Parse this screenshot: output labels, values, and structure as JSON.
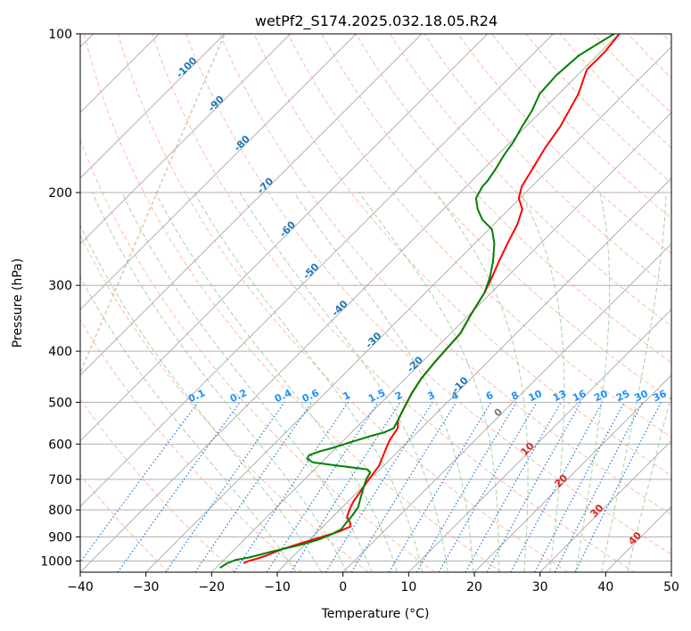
{
  "chart_data": {
    "type": "line",
    "chart_kind": "skew-T log-p thermodynamic diagram",
    "title": "wetPf2_S174.2025.032.18.05.R24",
    "xlabel": "Temperature (°C)",
    "ylabel": "Pressure (hPa)",
    "xlim": [
      -40,
      50
    ],
    "ylim": [
      1050,
      100
    ],
    "y_scale": "log",
    "x_ticks": [
      -40,
      -30,
      -20,
      -10,
      0,
      10,
      20,
      30,
      40,
      50
    ],
    "y_ticks": [
      100,
      200,
      300,
      400,
      500,
      600,
      700,
      800,
      900,
      1000
    ],
    "grid": true,
    "series": [
      {
        "name": "",
        "role": "temperature",
        "color": "#ff0000",
        "points": [
          [
            1010,
            -16.5
          ],
          [
            1000,
            -16.1
          ],
          [
            990,
            -15.2
          ],
          [
            975,
            -14.1
          ],
          [
            950,
            -12.8
          ],
          [
            925,
            -10.8
          ],
          [
            900,
            -8.6
          ],
          [
            880,
            -6.8
          ],
          [
            860,
            -5.8
          ],
          [
            845,
            -6.5
          ],
          [
            825,
            -7.8
          ],
          [
            800,
            -8.5
          ],
          [
            770,
            -9.2
          ],
          [
            740,
            -9.6
          ],
          [
            700,
            -10.2
          ],
          [
            660,
            -10.7
          ],
          [
            620,
            -12.0
          ],
          [
            590,
            -13.0
          ],
          [
            560,
            -13.6
          ],
          [
            540,
            -14.8
          ],
          [
            510,
            -15.8
          ],
          [
            480,
            -16.8
          ],
          [
            450,
            -17.6
          ],
          [
            420,
            -18.0
          ],
          [
            400,
            -18.2
          ],
          [
            370,
            -18.5
          ],
          [
            340,
            -19.8
          ],
          [
            310,
            -21.0
          ],
          [
            290,
            -22.2
          ],
          [
            270,
            -23.6
          ],
          [
            250,
            -25.0
          ],
          [
            230,
            -26.4
          ],
          [
            215,
            -28.0
          ],
          [
            205,
            -30.2
          ],
          [
            195,
            -31.5
          ],
          [
            180,
            -32.6
          ],
          [
            165,
            -33.8
          ],
          [
            150,
            -34.8
          ],
          [
            130,
            -37.0
          ],
          [
            117,
            -39.4
          ],
          [
            108,
            -39.4
          ],
          [
            100,
            -39.9
          ]
        ]
      },
      {
        "name": "",
        "role": "dewpoint",
        "color": "#008000",
        "points": [
          [
            1030,
            -19.4
          ],
          [
            1010,
            -19.0
          ],
          [
            995,
            -18.2
          ],
          [
            985,
            -16.6
          ],
          [
            960,
            -14.0
          ],
          [
            930,
            -10.4
          ],
          [
            910,
            -8.6
          ],
          [
            890,
            -7.5
          ],
          [
            870,
            -6.8
          ],
          [
            850,
            -7.0
          ],
          [
            820,
            -7.2
          ],
          [
            790,
            -7.6
          ],
          [
            760,
            -8.6
          ],
          [
            730,
            -9.6
          ],
          [
            700,
            -10.6
          ],
          [
            680,
            -11.0
          ],
          [
            670,
            -12.0
          ],
          [
            660,
            -16.8
          ],
          [
            650,
            -21.3
          ],
          [
            640,
            -22.7
          ],
          [
            630,
            -23.0
          ],
          [
            620,
            -22.0
          ],
          [
            610,
            -20.5
          ],
          [
            595,
            -18.6
          ],
          [
            580,
            -16.6
          ],
          [
            570,
            -15.0
          ],
          [
            560,
            -14.2
          ],
          [
            540,
            -14.8
          ],
          [
            510,
            -15.8
          ],
          [
            480,
            -16.8
          ],
          [
            450,
            -17.6
          ],
          [
            420,
            -18.0
          ],
          [
            400,
            -18.2
          ],
          [
            370,
            -18.5
          ],
          [
            340,
            -19.8
          ],
          [
            310,
            -21.0
          ],
          [
            290,
            -22.5
          ],
          [
            270,
            -24.5
          ],
          [
            250,
            -27.0
          ],
          [
            235,
            -29.5
          ],
          [
            225,
            -32.5
          ],
          [
            215,
            -34.8
          ],
          [
            205,
            -36.7
          ],
          [
            195,
            -37.5
          ],
          [
            190,
            -37.6
          ],
          [
            180,
            -38.2
          ],
          [
            170,
            -39.0
          ],
          [
            160,
            -39.6
          ],
          [
            150,
            -40.6
          ],
          [
            140,
            -41.5
          ],
          [
            130,
            -42.9
          ],
          [
            120,
            -43.2
          ],
          [
            110,
            -42.8
          ],
          [
            104,
            -41.6
          ],
          [
            100,
            -40.7
          ]
        ]
      }
    ],
    "background_lines": {
      "isotherms_every_c": 10,
      "dry_adiabats_color": "#ff9f80",
      "moist_adiabats_color": "#80c080",
      "mixing_ratio_color": "#1f77d4",
      "ice_curve_color": "#d2b48c"
    },
    "mixing_ratio_labels": [
      "0.1",
      "0.2",
      "0.4",
      "0.6",
      "1",
      "1.5",
      "2",
      "3",
      "4",
      "6",
      "8",
      "10",
      "13",
      "16",
      "20",
      "25",
      "30",
      "36"
    ],
    "isotherm_labels_blue": [
      {
        "text": "-100",
        "pressure": 117,
        "temp_c": -100
      },
      {
        "text": "-90",
        "pressure": 137,
        "temp_c": -90
      },
      {
        "text": "-80",
        "pressure": 163,
        "temp_c": -80
      },
      {
        "text": "-70",
        "pressure": 196,
        "temp_c": -70
      },
      {
        "text": "-60",
        "pressure": 237,
        "temp_c": -60
      },
      {
        "text": "-50",
        "pressure": 285,
        "temp_c": -50
      },
      {
        "text": "-40",
        "pressure": 335,
        "temp_c": -40
      },
      {
        "text": "-30",
        "pressure": 385,
        "temp_c": -30
      },
      {
        "text": "-20",
        "pressure": 428,
        "temp_c": -20
      },
      {
        "text": "-10",
        "pressure": 468,
        "temp_c": -10
      }
    ],
    "isotherm_labels_red": [
      {
        "text": "0",
        "pressure": 528,
        "temp_c": 0,
        "color": "#7a7a7a"
      },
      {
        "text": "10",
        "pressure": 619,
        "temp_c": 10,
        "color": "#d62728"
      },
      {
        "text": "20",
        "pressure": 712,
        "temp_c": 20,
        "color": "#d62728"
      },
      {
        "text": "30",
        "pressure": 811,
        "temp_c": 30,
        "color": "#d62728"
      },
      {
        "text": "40",
        "pressure": 915,
        "temp_c": 40,
        "color": "#d62728"
      }
    ]
  }
}
